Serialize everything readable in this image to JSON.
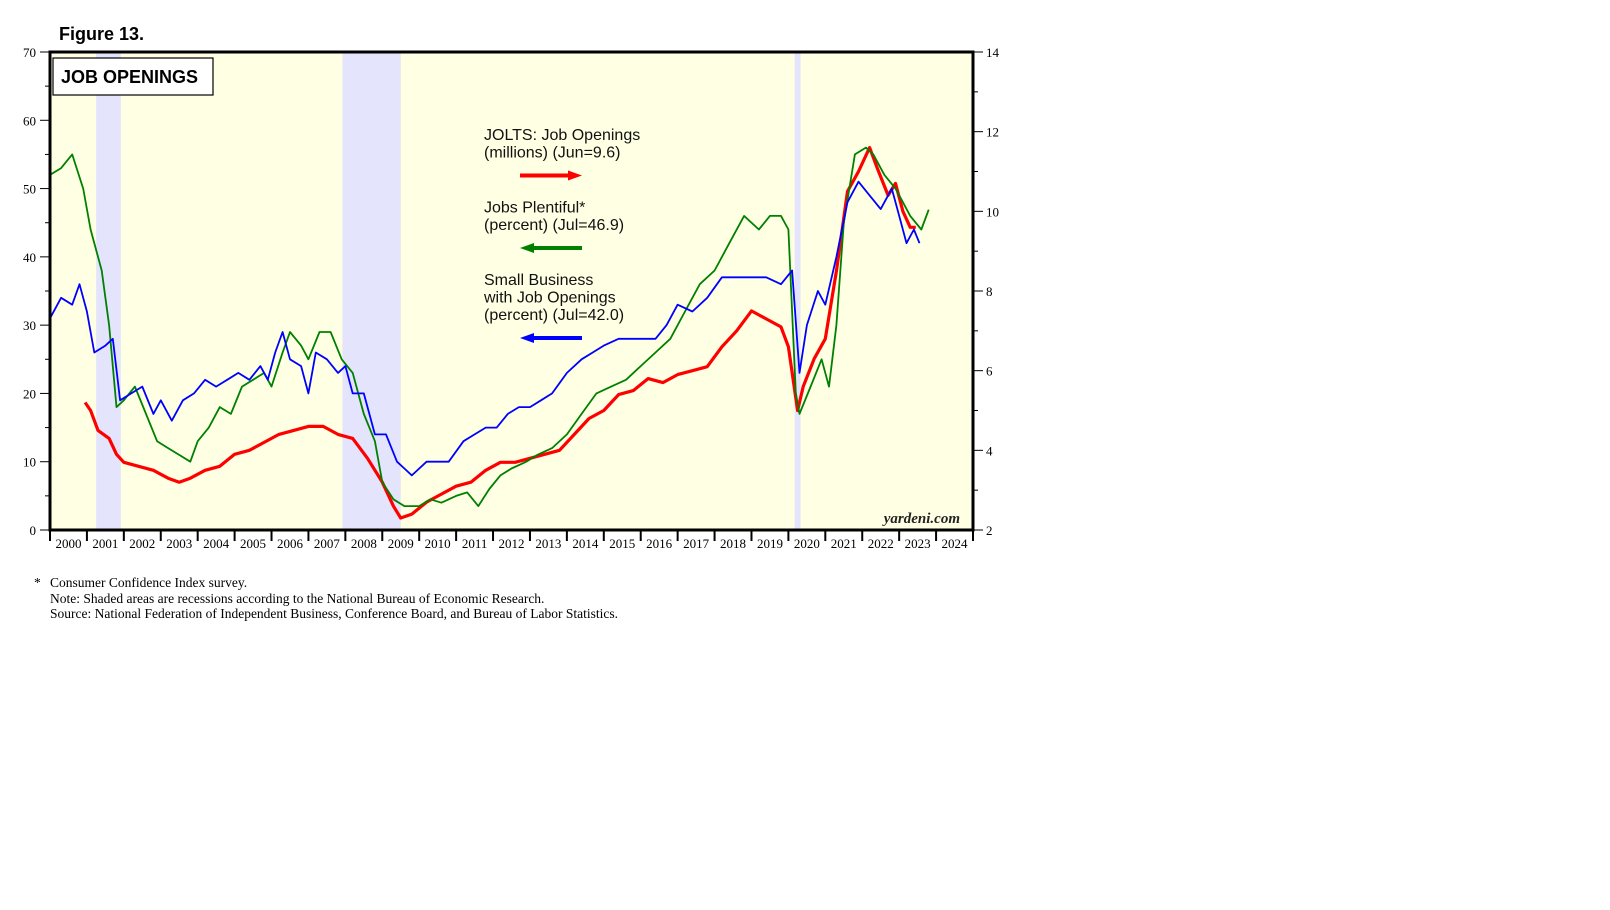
{
  "figure_label": "Figure 13.",
  "notes": {
    "footnote_marker": "*",
    "footnote": "Consumer Confidence Index survey.",
    "note": "Note: Shaded areas are recessions according to the National Bureau of Economic Research.",
    "source": "Source: National Federation of Independent Business, Conference Board, and Bureau of Labor Statistics."
  },
  "chart_data": {
    "type": "line",
    "title": "JOB OPENINGS",
    "watermark": "yardeni.com",
    "xlim": [
      2000,
      2025
    ],
    "x_tick_labels": [
      "2000",
      "2001",
      "2002",
      "2003",
      "2004",
      "2005",
      "2006",
      "2007",
      "2008",
      "2009",
      "2010",
      "2011",
      "2012",
      "2013",
      "2014",
      "2015",
      "2016",
      "2017",
      "2018",
      "2019",
      "2020",
      "2021",
      "2022",
      "2023",
      "2024"
    ],
    "y_left": {
      "range": [
        0,
        70
      ],
      "ticks": [
        0,
        10,
        20,
        30,
        40,
        50,
        60,
        70
      ]
    },
    "y_right": {
      "range": [
        2,
        14
      ],
      "ticks": [
        2,
        4,
        6,
        8,
        10,
        12,
        14
      ]
    },
    "background_color": "#ffffe4",
    "recession_color": "#e4e4fc",
    "recessions": [
      [
        2001.25,
        2001.92
      ],
      [
        2007.92,
        2009.5
      ],
      [
        2020.17,
        2020.33
      ]
    ],
    "legend": [
      {
        "lines": [
          "JOLTS: Job Openings",
          "(millions) (Jun=9.6)"
        ],
        "arrow": "right",
        "color": "#ff0000"
      },
      {
        "lines": [
          "Jobs Plentiful*",
          "(percent) (Jul=46.9)"
        ],
        "arrow": "left",
        "color": "#008000"
      },
      {
        "lines": [
          "Small Business",
          "with Job Openings",
          "(percent) (Jul=42.0)"
        ],
        "arrow": "left",
        "color": "#0000ff"
      }
    ],
    "series": [
      {
        "axis": "right",
        "color": "#ff0000",
        "x": [
          2000.95,
          2001.1,
          2001.3,
          2001.6,
          2001.8,
          2002.0,
          2002.4,
          2002.8,
          2003.2,
          2003.5,
          2003.8,
          2004.2,
          2004.6,
          2005.0,
          2005.4,
          2005.8,
          2006.2,
          2006.6,
          2007.0,
          2007.4,
          2007.8,
          2008.2,
          2008.6,
          2009.0,
          2009.3,
          2009.5,
          2009.8,
          2010.2,
          2010.6,
          2011.0,
          2011.4,
          2011.8,
          2012.2,
          2012.6,
          2013.0,
          2013.4,
          2013.8,
          2014.2,
          2014.6,
          2015.0,
          2015.4,
          2015.8,
          2016.2,
          2016.6,
          2017.0,
          2017.4,
          2017.8,
          2018.2,
          2018.6,
          2019.0,
          2019.4,
          2019.8,
          2020.0,
          2020.25,
          2020.4,
          2020.7,
          2021.0,
          2021.3,
          2021.6,
          2021.9,
          2022.2,
          2022.4,
          2022.7,
          2022.9,
          2023.1,
          2023.3,
          2023.45
        ],
        "values": [
          5.2,
          5.0,
          4.5,
          4.3,
          3.9,
          3.7,
          3.6,
          3.5,
          3.3,
          3.2,
          3.3,
          3.5,
          3.6,
          3.9,
          4.0,
          4.2,
          4.4,
          4.5,
          4.6,
          4.6,
          4.4,
          4.3,
          3.8,
          3.2,
          2.6,
          2.3,
          2.4,
          2.7,
          2.9,
          3.1,
          3.2,
          3.5,
          3.7,
          3.7,
          3.8,
          3.9,
          4.0,
          4.4,
          4.8,
          5.0,
          5.4,
          5.5,
          5.8,
          5.7,
          5.9,
          6.0,
          6.1,
          6.6,
          7.0,
          7.5,
          7.3,
          7.1,
          6.6,
          5.0,
          5.6,
          6.3,
          6.8,
          8.5,
          10.5,
          11.0,
          11.6,
          11.1,
          10.4,
          10.7,
          10.0,
          9.6,
          9.6
        ]
      },
      {
        "axis": "left",
        "color": "#008000",
        "x": [
          2000.0,
          2000.3,
          2000.6,
          2000.9,
          2001.1,
          2001.4,
          2001.6,
          2001.8,
          2002.0,
          2002.3,
          2002.6,
          2002.9,
          2003.2,
          2003.5,
          2003.8,
          2004.0,
          2004.3,
          2004.6,
          2004.9,
          2005.2,
          2005.5,
          2005.8,
          2006.0,
          2006.3,
          2006.5,
          2006.8,
          2007.0,
          2007.3,
          2007.6,
          2007.9,
          2008.2,
          2008.5,
          2008.8,
          2009.0,
          2009.3,
          2009.6,
          2010.0,
          2010.3,
          2010.6,
          2011.0,
          2011.3,
          2011.6,
          2011.9,
          2012.2,
          2012.5,
          2012.9,
          2013.2,
          2013.6,
          2014.0,
          2014.4,
          2014.8,
          2015.2,
          2015.6,
          2016.0,
          2016.4,
          2016.8,
          2017.2,
          2017.6,
          2018.0,
          2018.4,
          2018.8,
          2019.2,
          2019.5,
          2019.8,
          2020.0,
          2020.2,
          2020.3,
          2020.6,
          2020.9,
          2021.1,
          2021.3,
          2021.5,
          2021.8,
          2022.1,
          2022.3,
          2022.6,
          2022.9,
          2023.1,
          2023.3,
          2023.6,
          2023.8
        ],
        "values": [
          52,
          53,
          55,
          50,
          44,
          38,
          30,
          18,
          19,
          21,
          17,
          13,
          12,
          11,
          10,
          13,
          15,
          18,
          17,
          21,
          22,
          23,
          21,
          26,
          29,
          27,
          25,
          29,
          29,
          25,
          23,
          17,
          13,
          7,
          4.5,
          3.5,
          3.5,
          4.5,
          4,
          5,
          5.5,
          3.5,
          6,
          8,
          9,
          10,
          11,
          12,
          14,
          17,
          20,
          21,
          22,
          24,
          26,
          28,
          32,
          36,
          38,
          42,
          46,
          44,
          46,
          46,
          44,
          20,
          17,
          21,
          25,
          21,
          30,
          45,
          55,
          56,
          55,
          52,
          50,
          48,
          46,
          44,
          46.9
        ]
      },
      {
        "axis": "left",
        "color": "#0000ff",
        "x": [
          2000.0,
          2000.3,
          2000.6,
          2000.8,
          2001.0,
          2001.2,
          2001.5,
          2001.7,
          2001.9,
          2002.2,
          2002.5,
          2002.8,
          2003.0,
          2003.3,
          2003.6,
          2003.9,
          2004.2,
          2004.5,
          2004.8,
          2005.1,
          2005.4,
          2005.7,
          2005.9,
          2006.1,
          2006.3,
          2006.5,
          2006.8,
          2007.0,
          2007.2,
          2007.5,
          2007.8,
          2008.0,
          2008.2,
          2008.5,
          2008.8,
          2009.1,
          2009.4,
          2009.6,
          2009.8,
          2010.2,
          2010.5,
          2010.8,
          2011.2,
          2011.5,
          2011.8,
          2012.1,
          2012.4,
          2012.7,
          2013.0,
          2013.3,
          2013.6,
          2014.0,
          2014.4,
          2014.7,
          2015.0,
          2015.4,
          2015.7,
          2016.0,
          2016.4,
          2016.7,
          2017.0,
          2017.4,
          2017.8,
          2018.2,
          2018.6,
          2019.0,
          2019.4,
          2019.8,
          2020.1,
          2020.3,
          2020.5,
          2020.8,
          2021.0,
          2021.3,
          2021.6,
          2021.9,
          2022.2,
          2022.5,
          2022.8,
          2023.0,
          2023.2,
          2023.4,
          2023.55
        ],
        "values": [
          31,
          34,
          33,
          36,
          32,
          26,
          27,
          28,
          19,
          20,
          21,
          17,
          19,
          16,
          19,
          20,
          22,
          21,
          22,
          23,
          22,
          24,
          22,
          26,
          29,
          25,
          24,
          20,
          26,
          25,
          23,
          24,
          20,
          20,
          14,
          14,
          10,
          9,
          8,
          10,
          10,
          10,
          13,
          14,
          15,
          15,
          17,
          18,
          18,
          19,
          20,
          23,
          25,
          26,
          27,
          28,
          28,
          28,
          28,
          30,
          33,
          32,
          34,
          37,
          37,
          37,
          37,
          36,
          38,
          23,
          30,
          35,
          33,
          40,
          48,
          51,
          49,
          47,
          50,
          46,
          42,
          44,
          42.0
        ]
      }
    ]
  }
}
